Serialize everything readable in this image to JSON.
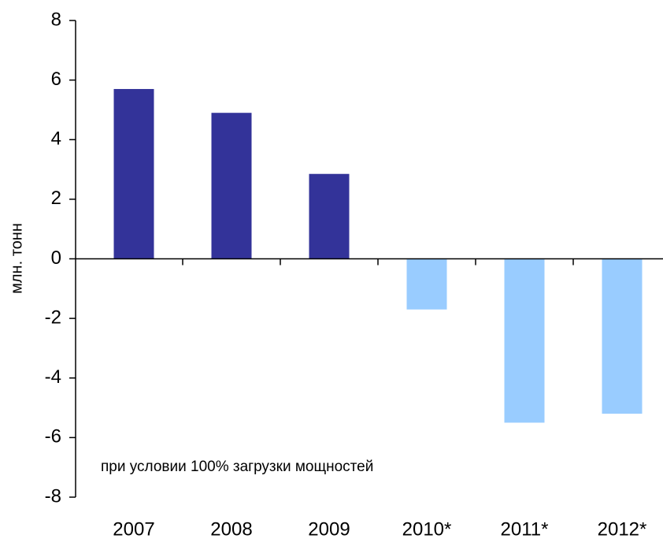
{
  "chart_data": {
    "type": "bar",
    "y_label": "млн. тонн",
    "annotation": "при условии 100% загрузки мощностей",
    "categories": [
      "2007",
      "2008",
      "2009",
      "2010*",
      "2011*",
      "2012*"
    ],
    "values": [
      5.7,
      4.9,
      2.85,
      -1.7,
      -5.5,
      -5.2
    ],
    "colors": [
      "#333399",
      "#333399",
      "#333399",
      "#99ccff",
      "#99ccff",
      "#99ccff"
    ],
    "ylim": [
      -8,
      8
    ],
    "yticks": [
      -8,
      -6,
      -4,
      -2,
      0,
      2,
      4,
      6,
      8
    ],
    "grid": false
  }
}
